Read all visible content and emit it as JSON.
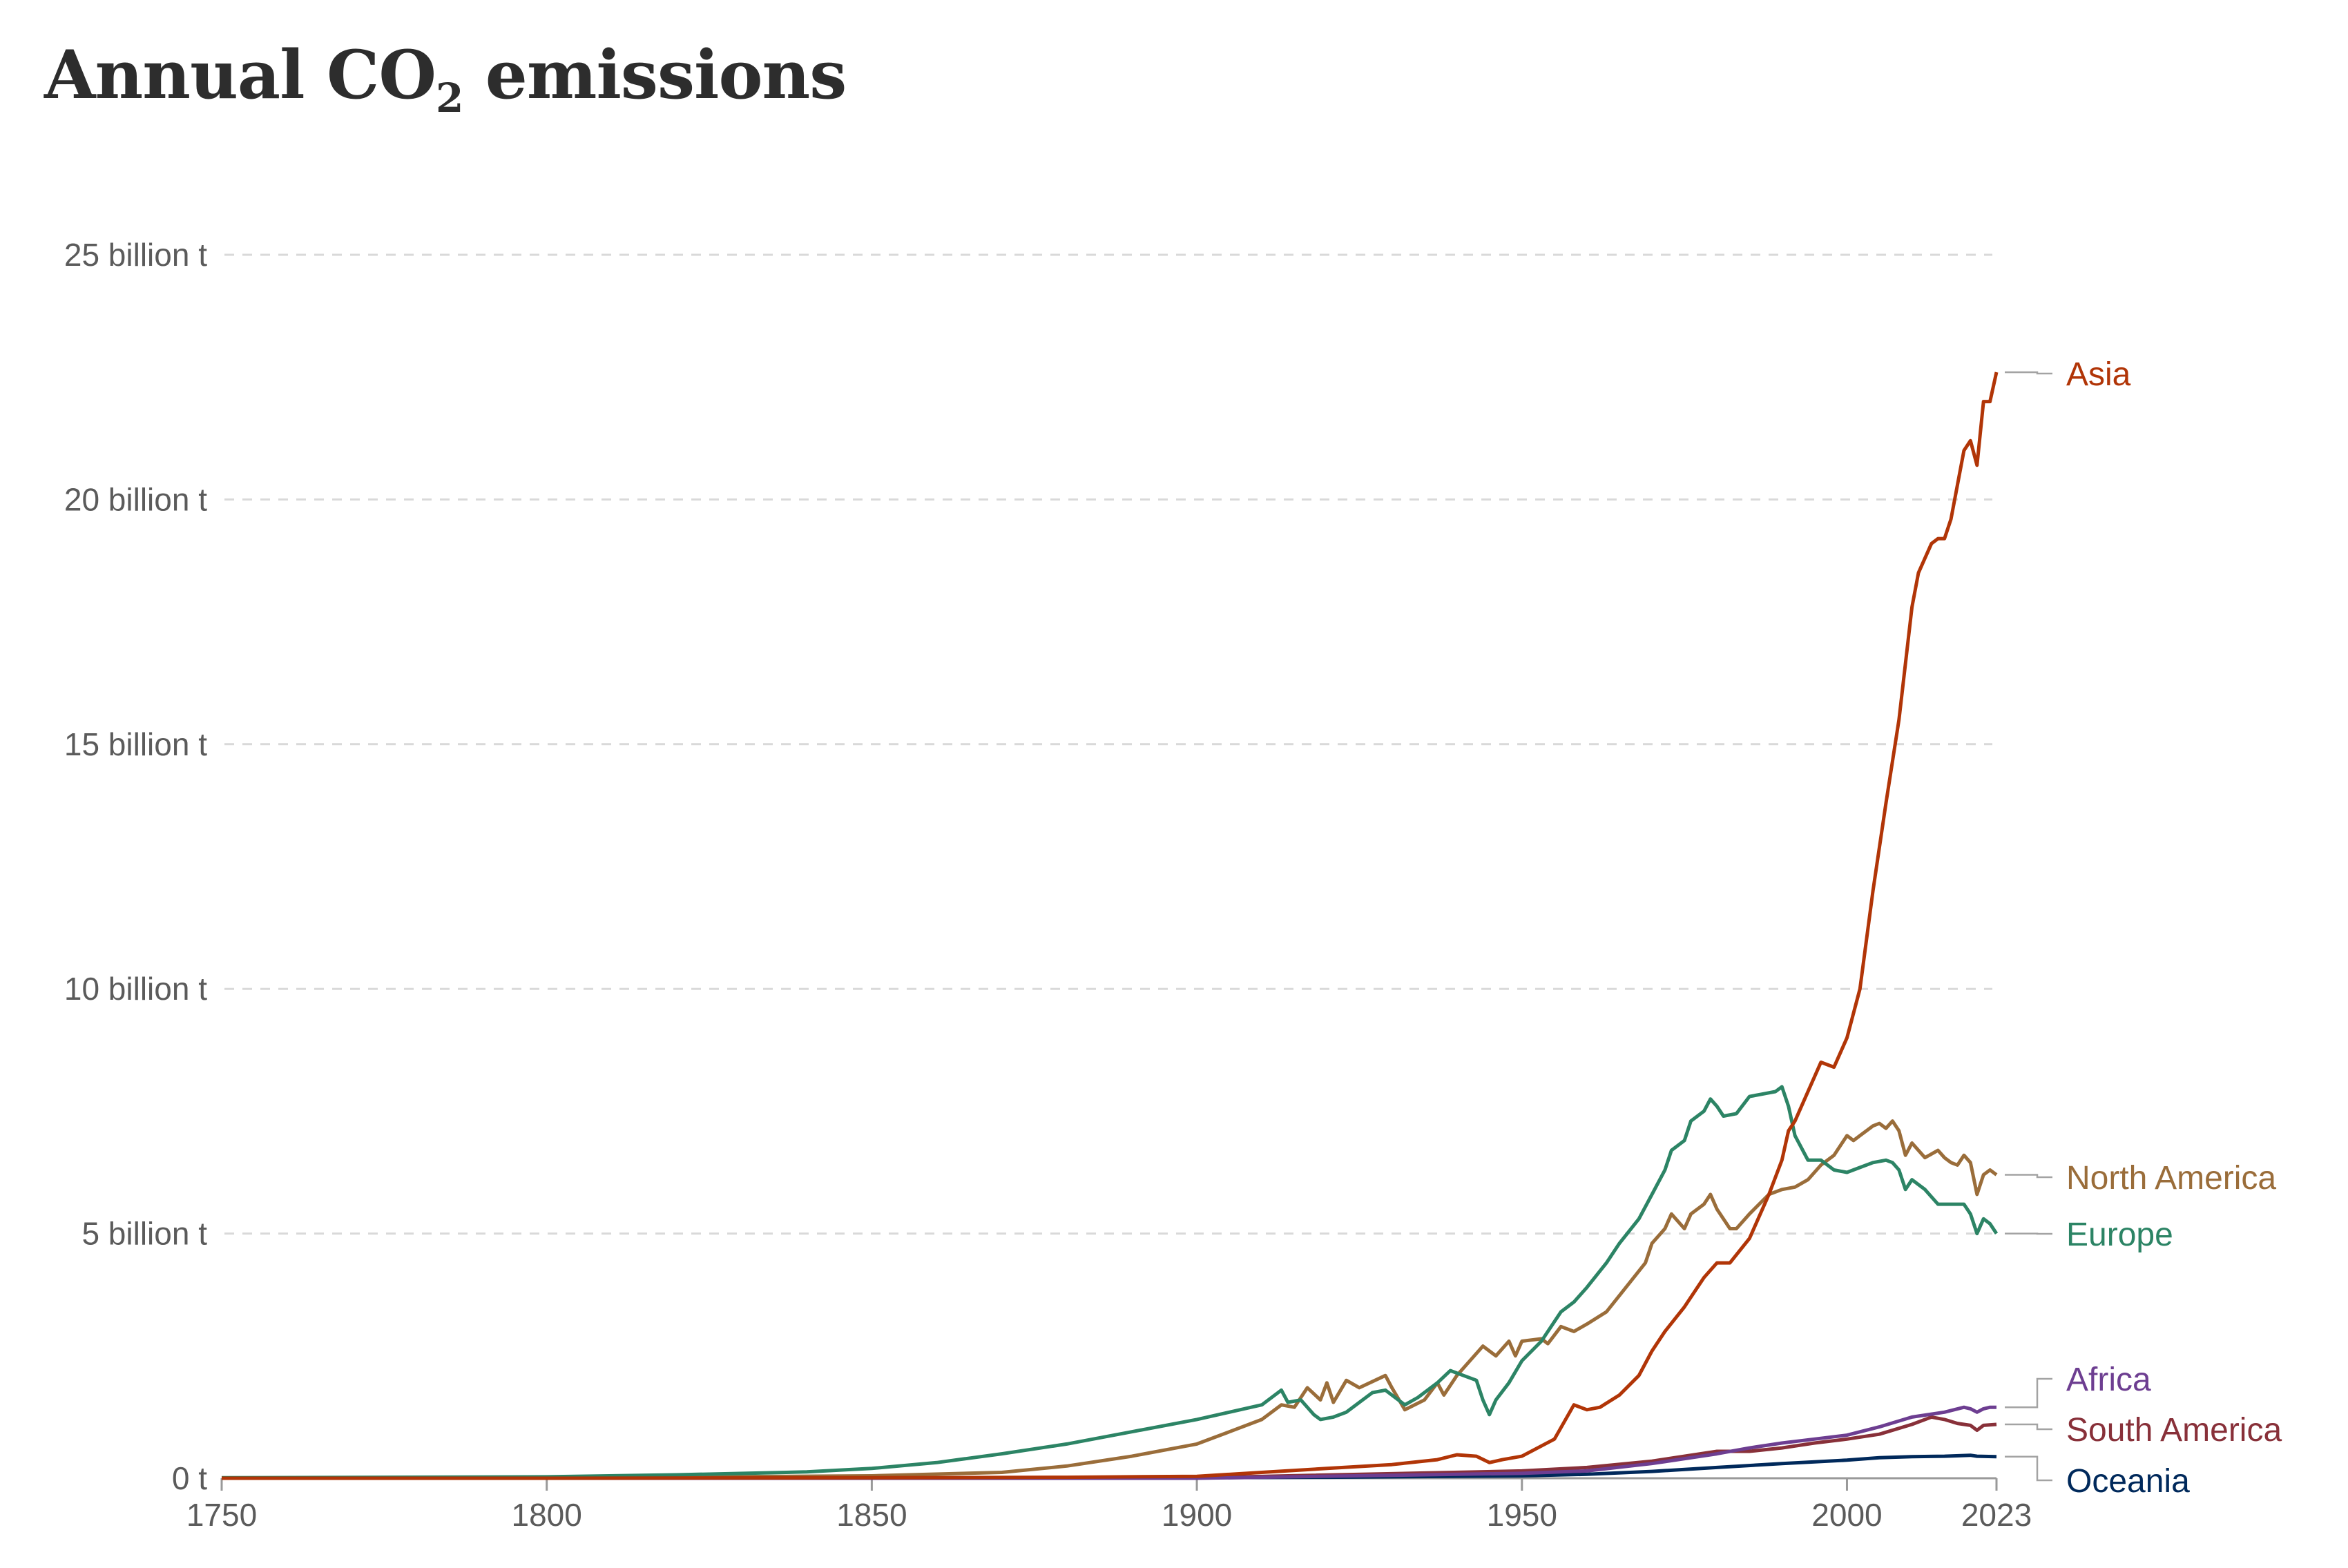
{
  "title": {
    "text": "Annual CO",
    "subscript": "2",
    "suffix": " emissions"
  },
  "chart_data": {
    "type": "line",
    "title": "Annual CO₂ emissions",
    "xlim": [
      1750,
      2023
    ],
    "ylim": [
      0,
      25
    ],
    "grid": "horizontal dashed",
    "legend": "labels at line ends",
    "x_ticks": [
      {
        "value": 1750,
        "label": "1750"
      },
      {
        "value": 1800,
        "label": "1800"
      },
      {
        "value": 1850,
        "label": "1850"
      },
      {
        "value": 1900,
        "label": "1900"
      },
      {
        "value": 1950,
        "label": "1950"
      },
      {
        "value": 2000,
        "label": "2000"
      },
      {
        "value": 2023,
        "label": "2023"
      }
    ],
    "y_ticks": [
      {
        "value": 0,
        "label": "0 t"
      },
      {
        "value": 5,
        "label": "5 billion t"
      },
      {
        "value": 10,
        "label": "10 billion t"
      },
      {
        "value": 15,
        "label": "15 billion t"
      },
      {
        "value": 20,
        "label": "20 billion t"
      },
      {
        "value": 25,
        "label": "25 billion t"
      }
    ],
    "series": [
      {
        "name": "Asia",
        "color": "#b13507",
        "points": [
          [
            1750,
            0
          ],
          [
            1800,
            0
          ],
          [
            1850,
            0.01
          ],
          [
            1880,
            0.02
          ],
          [
            1900,
            0.04
          ],
          [
            1910,
            0.12
          ],
          [
            1920,
            0.2
          ],
          [
            1930,
            0.28
          ],
          [
            1937,
            0.38
          ],
          [
            1940,
            0.48
          ],
          [
            1943,
            0.45
          ],
          [
            1945,
            0.32
          ],
          [
            1947,
            0.38
          ],
          [
            1950,
            0.45
          ],
          [
            1955,
            0.8
          ],
          [
            1958,
            1.5
          ],
          [
            1960,
            1.4
          ],
          [
            1962,
            1.45
          ],
          [
            1965,
            1.7
          ],
          [
            1968,
            2.1
          ],
          [
            1970,
            2.6
          ],
          [
            1972,
            3.0
          ],
          [
            1975,
            3.5
          ],
          [
            1978,
            4.1
          ],
          [
            1980,
            4.4
          ],
          [
            1982,
            4.4
          ],
          [
            1985,
            4.9
          ],
          [
            1988,
            5.8
          ],
          [
            1990,
            6.5
          ],
          [
            1991,
            7.1
          ],
          [
            1992,
            7.3
          ],
          [
            1994,
            7.9
          ],
          [
            1996,
            8.5
          ],
          [
            1998,
            8.4
          ],
          [
            2000,
            9.0
          ],
          [
            2002,
            10.0
          ],
          [
            2004,
            12.0
          ],
          [
            2006,
            13.8
          ],
          [
            2008,
            15.5
          ],
          [
            2010,
            17.8
          ],
          [
            2011,
            18.5
          ],
          [
            2012,
            18.8
          ],
          [
            2013,
            19.1
          ],
          [
            2014,
            19.2
          ],
          [
            2015,
            19.2
          ],
          [
            2016,
            19.6
          ],
          [
            2017,
            20.3
          ],
          [
            2018,
            21.0
          ],
          [
            2019,
            21.2
          ],
          [
            2020,
            20.7
          ],
          [
            2021,
            22.0
          ],
          [
            2022,
            22.0
          ],
          [
            2023,
            22.6
          ]
        ]
      },
      {
        "name": "North America",
        "color": "#9a6d3a",
        "points": [
          [
            1750,
            0
          ],
          [
            1800,
            0.01
          ],
          [
            1850,
            0.05
          ],
          [
            1870,
            0.12
          ],
          [
            1880,
            0.25
          ],
          [
            1890,
            0.45
          ],
          [
            1900,
            0.7
          ],
          [
            1905,
            0.95
          ],
          [
            1910,
            1.2
          ],
          [
            1913,
            1.5
          ],
          [
            1915,
            1.45
          ],
          [
            1917,
            1.85
          ],
          [
            1919,
            1.6
          ],
          [
            1920,
            1.95
          ],
          [
            1921,
            1.55
          ],
          [
            1923,
            2.0
          ],
          [
            1925,
            1.85
          ],
          [
            1929,
            2.1
          ],
          [
            1930,
            1.85
          ],
          [
            1932,
            1.4
          ],
          [
            1935,
            1.6
          ],
          [
            1937,
            1.95
          ],
          [
            1938,
            1.7
          ],
          [
            1940,
            2.1
          ],
          [
            1942,
            2.4
          ],
          [
            1944,
            2.7
          ],
          [
            1946,
            2.5
          ],
          [
            1948,
            2.8
          ],
          [
            1949,
            2.5
          ],
          [
            1950,
            2.8
          ],
          [
            1953,
            2.85
          ],
          [
            1954,
            2.75
          ],
          [
            1956,
            3.1
          ],
          [
            1958,
            3.0
          ],
          [
            1960,
            3.15
          ],
          [
            1963,
            3.4
          ],
          [
            1966,
            3.9
          ],
          [
            1969,
            4.4
          ],
          [
            1970,
            4.8
          ],
          [
            1972,
            5.1
          ],
          [
            1973,
            5.4
          ],
          [
            1975,
            5.1
          ],
          [
            1976,
            5.4
          ],
          [
            1978,
            5.6
          ],
          [
            1979,
            5.8
          ],
          [
            1980,
            5.5
          ],
          [
            1982,
            5.1
          ],
          [
            1983,
            5.1
          ],
          [
            1985,
            5.4
          ],
          [
            1988,
            5.8
          ],
          [
            1990,
            5.9
          ],
          [
            1992,
            5.95
          ],
          [
            1994,
            6.1
          ],
          [
            1996,
            6.4
          ],
          [
            1998,
            6.6
          ],
          [
            2000,
            7.0
          ],
          [
            2001,
            6.9
          ],
          [
            2002,
            7.0
          ],
          [
            2004,
            7.2
          ],
          [
            2005,
            7.25
          ],
          [
            2006,
            7.15
          ],
          [
            2007,
            7.3
          ],
          [
            2008,
            7.1
          ],
          [
            2009,
            6.6
          ],
          [
            2010,
            6.85
          ],
          [
            2012,
            6.55
          ],
          [
            2014,
            6.7
          ],
          [
            2015,
            6.55
          ],
          [
            2016,
            6.45
          ],
          [
            2017,
            6.4
          ],
          [
            2018,
            6.6
          ],
          [
            2019,
            6.45
          ],
          [
            2020,
            5.8
          ],
          [
            2021,
            6.2
          ],
          [
            2022,
            6.3
          ],
          [
            2023,
            6.2
          ]
        ]
      },
      {
        "name": "Europe",
        "color": "#2c8465",
        "points": [
          [
            1750,
            0.01
          ],
          [
            1800,
            0.03
          ],
          [
            1820,
            0.07
          ],
          [
            1840,
            0.13
          ],
          [
            1850,
            0.2
          ],
          [
            1860,
            0.32
          ],
          [
            1870,
            0.5
          ],
          [
            1880,
            0.7
          ],
          [
            1890,
            0.95
          ],
          [
            1900,
            1.2
          ],
          [
            1905,
            1.35
          ],
          [
            1910,
            1.5
          ],
          [
            1913,
            1.8
          ],
          [
            1914,
            1.55
          ],
          [
            1916,
            1.6
          ],
          [
            1918,
            1.3
          ],
          [
            1919,
            1.2
          ],
          [
            1921,
            1.25
          ],
          [
            1923,
            1.35
          ],
          [
            1925,
            1.55
          ],
          [
            1927,
            1.75
          ],
          [
            1929,
            1.8
          ],
          [
            1930,
            1.7
          ],
          [
            1932,
            1.5
          ],
          [
            1934,
            1.65
          ],
          [
            1937,
            1.95
          ],
          [
            1939,
            2.2
          ],
          [
            1941,
            2.1
          ],
          [
            1943,
            2.0
          ],
          [
            1944,
            1.6
          ],
          [
            1945,
            1.3
          ],
          [
            1946,
            1.6
          ],
          [
            1948,
            1.95
          ],
          [
            1950,
            2.4
          ],
          [
            1953,
            2.8
          ],
          [
            1956,
            3.4
          ],
          [
            1958,
            3.6
          ],
          [
            1960,
            3.9
          ],
          [
            1963,
            4.4
          ],
          [
            1965,
            4.8
          ],
          [
            1968,
            5.3
          ],
          [
            1970,
            5.8
          ],
          [
            1972,
            6.3
          ],
          [
            1973,
            6.7
          ],
          [
            1975,
            6.9
          ],
          [
            1976,
            7.3
          ],
          [
            1978,
            7.5
          ],
          [
            1979,
            7.75
          ],
          [
            1980,
            7.6
          ],
          [
            1981,
            7.4
          ],
          [
            1983,
            7.45
          ],
          [
            1985,
            7.8
          ],
          [
            1987,
            7.85
          ],
          [
            1989,
            7.9
          ],
          [
            1990,
            8.0
          ],
          [
            1991,
            7.6
          ],
          [
            1992,
            7.0
          ],
          [
            1994,
            6.5
          ],
          [
            1996,
            6.5
          ],
          [
            1998,
            6.3
          ],
          [
            2000,
            6.25
          ],
          [
            2002,
            6.35
          ],
          [
            2004,
            6.45
          ],
          [
            2006,
            6.5
          ],
          [
            2007,
            6.45
          ],
          [
            2008,
            6.3
          ],
          [
            2009,
            5.9
          ],
          [
            2010,
            6.1
          ],
          [
            2012,
            5.9
          ],
          [
            2014,
            5.6
          ],
          [
            2016,
            5.6
          ],
          [
            2018,
            5.6
          ],
          [
            2019,
            5.4
          ],
          [
            2020,
            5.0
          ],
          [
            2021,
            5.3
          ],
          [
            2022,
            5.2
          ],
          [
            2023,
            5.0
          ]
        ]
      },
      {
        "name": "Africa",
        "color": "#6d3e91",
        "points": [
          [
            1750,
            0
          ],
          [
            1900,
            0
          ],
          [
            1950,
            0.1
          ],
          [
            1960,
            0.15
          ],
          [
            1970,
            0.3
          ],
          [
            1980,
            0.5
          ],
          [
            1985,
            0.62
          ],
          [
            1990,
            0.72
          ],
          [
            1995,
            0.8
          ],
          [
            2000,
            0.88
          ],
          [
            2005,
            1.05
          ],
          [
            2010,
            1.25
          ],
          [
            2015,
            1.35
          ],
          [
            2018,
            1.45
          ],
          [
            2019,
            1.42
          ],
          [
            2020,
            1.35
          ],
          [
            2021,
            1.42
          ],
          [
            2022,
            1.45
          ],
          [
            2023,
            1.45
          ]
        ]
      },
      {
        "name": "South America",
        "color": "#883039",
        "points": [
          [
            1750,
            0
          ],
          [
            1900,
            0.01
          ],
          [
            1950,
            0.15
          ],
          [
            1960,
            0.22
          ],
          [
            1970,
            0.35
          ],
          [
            1980,
            0.55
          ],
          [
            1985,
            0.55
          ],
          [
            1990,
            0.62
          ],
          [
            1995,
            0.72
          ],
          [
            2000,
            0.8
          ],
          [
            2005,
            0.9
          ],
          [
            2010,
            1.1
          ],
          [
            2013,
            1.25
          ],
          [
            2015,
            1.2
          ],
          [
            2017,
            1.12
          ],
          [
            2019,
            1.08
          ],
          [
            2020,
            0.98
          ],
          [
            2021,
            1.08
          ],
          [
            2023,
            1.1
          ]
        ]
      },
      {
        "name": "Oceania",
        "color": "#00295b",
        "points": [
          [
            1750,
            0
          ],
          [
            1900,
            0.01
          ],
          [
            1920,
            0.02
          ],
          [
            1950,
            0.05
          ],
          [
            1960,
            0.08
          ],
          [
            1970,
            0.14
          ],
          [
            1980,
            0.22
          ],
          [
            1990,
            0.3
          ],
          [
            2000,
            0.37
          ],
          [
            2005,
            0.42
          ],
          [
            2010,
            0.44
          ],
          [
            2015,
            0.45
          ],
          [
            2019,
            0.47
          ],
          [
            2020,
            0.45
          ],
          [
            2023,
            0.44
          ]
        ]
      }
    ],
    "labels": [
      {
        "series": "Asia",
        "text": "Asia"
      },
      {
        "series": "North America",
        "text": "North America"
      },
      {
        "series": "Europe",
        "text": "Europe"
      },
      {
        "series": "Africa",
        "text": "Africa"
      },
      {
        "series": "South America",
        "text": "South America"
      },
      {
        "series": "Oceania",
        "text": "Oceania"
      }
    ]
  }
}
